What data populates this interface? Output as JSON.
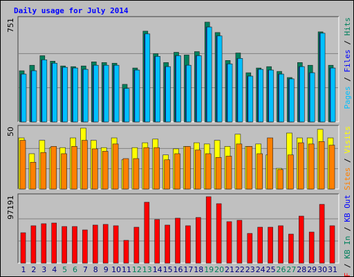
{
  "chart_data": [
    {
      "type": "bar",
      "title": "Daily usage for July 2014",
      "title_color": "#0000ff",
      "ylim": [
        0,
        751
      ],
      "yticks": [
        751
      ],
      "grid": true,
      "legend_separator": " / ",
      "series": [
        {
          "name": "Hits",
          "color": "#00805c",
          "values": [
            375,
            415,
            485,
            445,
            410,
            405,
            410,
            440,
            435,
            430,
            275,
            395,
            665,
            500,
            435,
            510,
            490,
            515,
            731,
            655,
            450,
            505,
            360,
            395,
            405,
            370,
            325,
            435,
            415,
            660,
            415
          ]
        },
        {
          "name": "Files",
          "color": "#0000ff",
          "values": [
            350,
            375,
            455,
            430,
            400,
            395,
            385,
            415,
            415,
            415,
            245,
            380,
            645,
            480,
            405,
            485,
            415,
            485,
            695,
            630,
            425,
            465,
            335,
            385,
            380,
            350,
            315,
            405,
            360,
            650,
            395
          ]
        },
        {
          "name": "Pages",
          "color": "#00c0ff",
          "values": [
            350,
            375,
            455,
            430,
            400,
            395,
            385,
            415,
            415,
            415,
            245,
            380,
            645,
            480,
            405,
            485,
            415,
            485,
            695,
            630,
            425,
            465,
            335,
            385,
            380,
            350,
            315,
            405,
            360,
            650,
            395
          ]
        }
      ]
    },
    {
      "type": "bar",
      "ylim": [
        0,
        50
      ],
      "yticks": [
        50
      ],
      "grid": true,
      "legend_separator": " / ",
      "series": [
        {
          "name": "Visits",
          "color": "#ffff00",
          "values": [
            42,
            29,
            40,
            34,
            34,
            42,
            50,
            40,
            34,
            42,
            24,
            34,
            38,
            41,
            28,
            33,
            35,
            38,
            37,
            40,
            35,
            45,
            35,
            37,
            28,
            17,
            46,
            42,
            42,
            49,
            42
          ]
        },
        {
          "name": "Sites",
          "color": "#ff8000",
          "values": [
            40,
            22,
            30,
            35,
            29,
            35,
            40,
            33,
            31,
            37,
            25,
            25,
            34,
            34,
            24,
            29,
            35,
            32,
            29,
            26,
            27,
            37,
            35,
            29,
            42,
            16,
            28,
            38,
            37,
            39,
            36
          ]
        }
      ]
    },
    {
      "type": "bar",
      "ylim": [
        0,
        97191
      ],
      "yticks": [
        97191
      ],
      "grid": true,
      "legend_separator": " / ",
      "categories": [
        "1",
        "2",
        "3",
        "4",
        "5",
        "6",
        "7",
        "8",
        "9",
        "10",
        "11",
        "12",
        "13",
        "14",
        "15",
        "16",
        "17",
        "18",
        "19",
        "20",
        "21",
        "22",
        "23",
        "24",
        "25",
        "26",
        "27",
        "28",
        "29",
        "30",
        "31"
      ],
      "category_colors": [
        "#000080",
        "#000080",
        "#000080",
        "#000080",
        "#00805c",
        "#00805c",
        "#000080",
        "#000080",
        "#000080",
        "#000080",
        "#000080",
        "#00805c",
        "#00805c",
        "#000080",
        "#000080",
        "#000080",
        "#000080",
        "#000080",
        "#00805c",
        "#00805c",
        "#000080",
        "#000080",
        "#000080",
        "#000080",
        "#000080",
        "#00805c",
        "#00805c",
        "#000080",
        "#000080",
        "#000080",
        "#000080"
      ],
      "series": [
        {
          "name": "KB F",
          "color": "#ff0000",
          "values": [
            44500,
            54700,
            57700,
            58700,
            53600,
            53600,
            48600,
            55700,
            56700,
            54700,
            33400,
            52600,
            89100,
            63800,
            55700,
            65800,
            54700,
            66800,
            97191,
            87000,
            60700,
            62700,
            43500,
            52600,
            52600,
            54700,
            42500,
            68800,
            45500,
            86000,
            54700
          ]
        }
      ],
      "other_legend_entries": [
        {
          "name": "KB In",
          "color": "#00805c"
        },
        {
          "name": "KB Out",
          "color": "#0000ff"
        }
      ]
    }
  ]
}
